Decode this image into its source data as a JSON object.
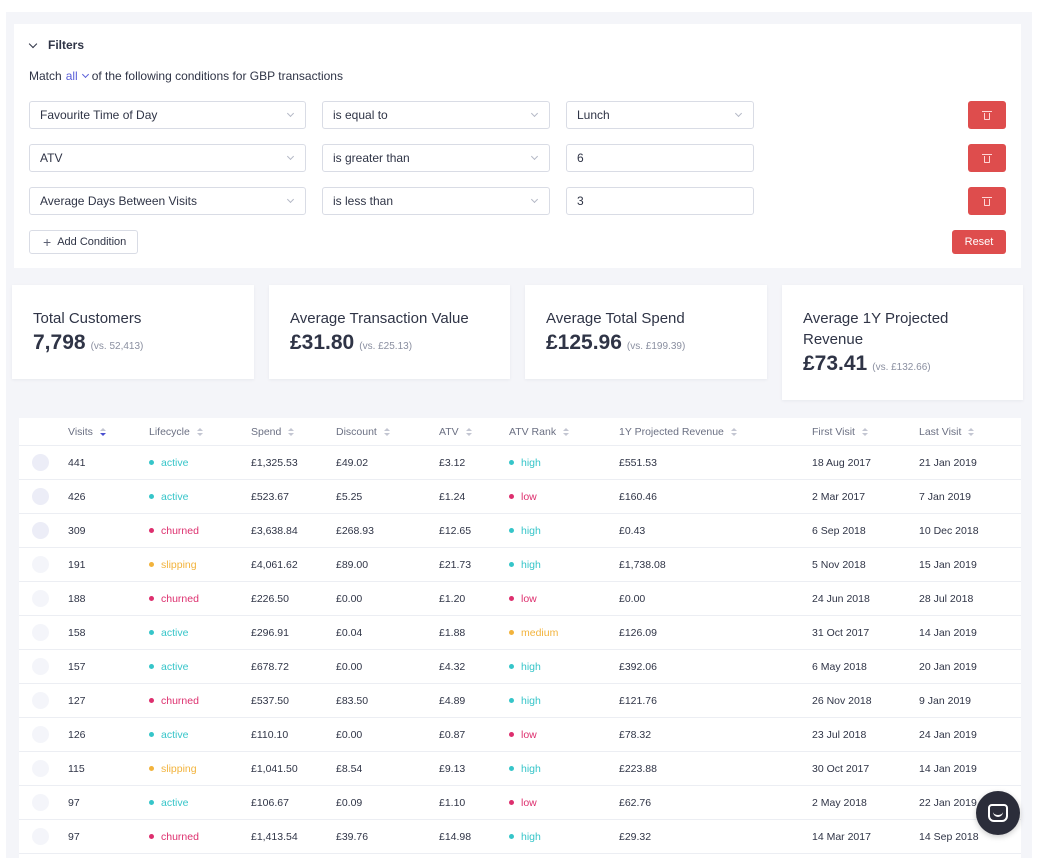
{
  "filters": {
    "title": "Filters",
    "match_prefix": "Match",
    "match_mode": "all",
    "match_suffix": "of the following conditions for GBP transactions",
    "conditions": [
      {
        "field": "Favourite Time of Day",
        "operator": "is equal to",
        "value": "Lunch",
        "value_is_select": true
      },
      {
        "field": "ATV",
        "operator": "is greater than",
        "value": "6",
        "value_is_select": false
      },
      {
        "field": "Average Days Between Visits",
        "operator": "is less than",
        "value": "3",
        "value_is_select": false
      }
    ],
    "add_label": "Add Condition",
    "reset_label": "Reset"
  },
  "metrics": [
    {
      "label": "Total Customers",
      "value": "7,798",
      "vs": "(vs. 52,413)"
    },
    {
      "label": "Average Transaction Value",
      "value": "£31.80",
      "vs": "(vs. £25.13)"
    },
    {
      "label": "Average Total Spend",
      "value": "£125.96",
      "vs": "(vs. £199.39)"
    },
    {
      "label": "Average 1Y Projected Revenue",
      "value": "£73.41",
      "vs": "(vs. £132.66)"
    }
  ],
  "table": {
    "columns": [
      "Visits",
      "Lifecycle",
      "Spend",
      "Discount",
      "ATV",
      "ATV Rank",
      "1Y Projected Revenue",
      "First Visit",
      "Last Visit"
    ],
    "rows": [
      [
        "441",
        "active",
        "£1,325.53",
        "£49.02",
        "£3.12",
        "high",
        "£551.53",
        "18 Aug 2017",
        "21 Jan 2019"
      ],
      [
        "426",
        "active",
        "£523.67",
        "£5.25",
        "£1.24",
        "low",
        "£160.46",
        "2 Mar 2017",
        "7 Jan 2019"
      ],
      [
        "309",
        "churned",
        "£3,638.84",
        "£268.93",
        "£12.65",
        "high",
        "£0.43",
        "6 Sep 2018",
        "10 Dec 2018"
      ],
      [
        "191",
        "slipping",
        "£4,061.62",
        "£89.00",
        "£21.73",
        "high",
        "£1,738.08",
        "5 Nov 2018",
        "15 Jan 2019"
      ],
      [
        "188",
        "churned",
        "£226.50",
        "£0.00",
        "£1.20",
        "low",
        "£0.00",
        "24 Jun 2018",
        "28 Jul 2018"
      ],
      [
        "158",
        "active",
        "£296.91",
        "£0.04",
        "£1.88",
        "medium",
        "£126.09",
        "31 Oct 2017",
        "14 Jan 2019"
      ],
      [
        "157",
        "active",
        "£678.72",
        "£0.00",
        "£4.32",
        "high",
        "£392.06",
        "6 May 2018",
        "20 Jan 2019"
      ],
      [
        "127",
        "churned",
        "£537.50",
        "£83.50",
        "£4.89",
        "high",
        "£121.76",
        "26 Nov 2018",
        "9 Jan 2019"
      ],
      [
        "126",
        "active",
        "£110.10",
        "£0.00",
        "£0.87",
        "low",
        "£78.32",
        "23 Jul 2018",
        "24 Jan 2019"
      ],
      [
        "115",
        "slipping",
        "£1,041.50",
        "£8.54",
        "£9.13",
        "high",
        "£223.88",
        "30 Oct 2017",
        "14 Jan 2019"
      ],
      [
        "97",
        "active",
        "£106.67",
        "£0.09",
        "£1.10",
        "low",
        "£62.76",
        "2 May 2018",
        "22 Jan 2019"
      ],
      [
        "97",
        "churned",
        "£1,413.54",
        "£39.76",
        "£14.98",
        "high",
        "£29.32",
        "14 Mar 2017",
        "14 Sep 2018"
      ]
    ]
  },
  "colors": {
    "active": "#36c5c9",
    "churned": "#dd2f6e",
    "slipping": "#f2b33c",
    "high": "#36c5c9",
    "low": "#dd2f6e",
    "medium": "#f2b33c",
    "danger": "#de4d4d",
    "accent": "#5a5fd8"
  },
  "icons": {
    "collapse": "chevron-down-icon",
    "delete": "trash-icon",
    "add": "plus-icon",
    "sort": "sort-icon",
    "chat": "chat-icon"
  }
}
